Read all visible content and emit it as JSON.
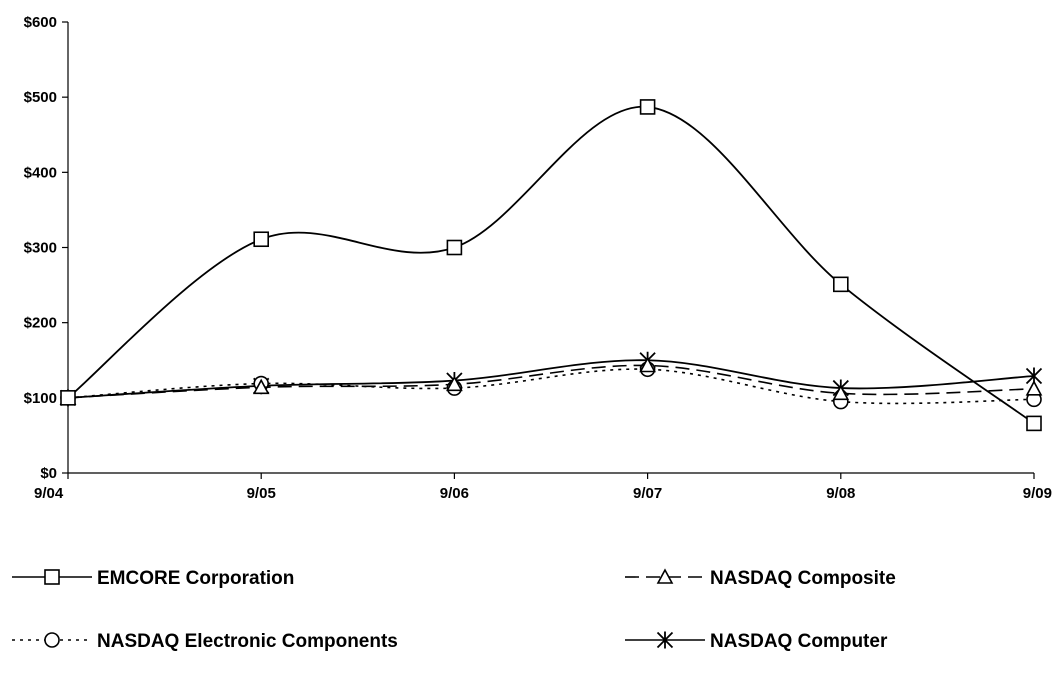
{
  "chart_data": {
    "type": "line",
    "categories": [
      "9/04",
      "9/05",
      "9/06",
      "9/07",
      "9/08",
      "9/09"
    ],
    "ylim": [
      0,
      600
    ],
    "yticks": [
      0,
      100,
      200,
      300,
      400,
      500,
      600
    ],
    "ytick_labels": [
      "$0",
      "$100",
      "$200",
      "$300",
      "$400",
      "$500",
      "$600"
    ],
    "grid": false,
    "legend_position": "bottom",
    "series": [
      {
        "name": "EMCORE Corporation",
        "values": [
          100,
          311,
          300,
          487,
          251,
          66
        ],
        "marker": "square",
        "dash": "solid",
        "color": "#000000"
      },
      {
        "name": "NASDAQ Composite",
        "values": [
          100,
          114,
          118,
          143,
          106,
          112
        ],
        "marker": "triangle",
        "dash": "dash",
        "color": "#000000"
      },
      {
        "name": "NASDAQ Electronic Components",
        "values": [
          100,
          119,
          113,
          138,
          95,
          98
        ],
        "marker": "circle",
        "dash": "dot",
        "color": "#000000"
      },
      {
        "name": "NASDAQ Computer",
        "values": [
          100,
          116,
          123,
          150,
          113,
          129
        ],
        "marker": "star",
        "dash": "solid",
        "color": "#000000"
      }
    ]
  }
}
